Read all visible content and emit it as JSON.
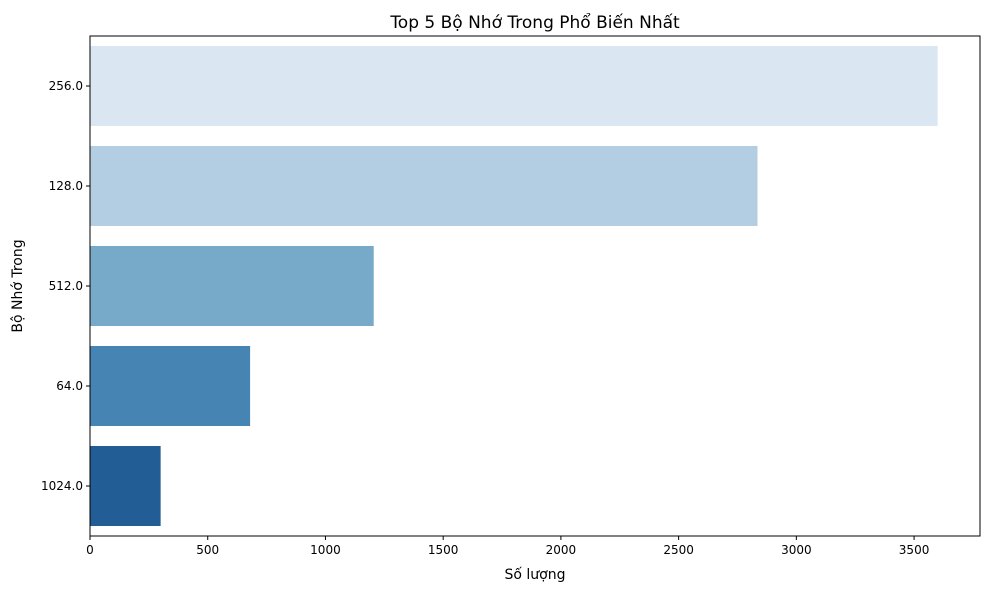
{
  "chart_data": {
    "type": "bar",
    "orientation": "horizontal",
    "title": "Top 5 Bộ Nhớ Trong Phổ Biến Nhất",
    "xlabel": "Số lượng",
    "ylabel": "Bộ Nhớ Trong",
    "categories": [
      "256.0",
      "128.0",
      "512.0",
      "64.0",
      "1024.0"
    ],
    "values": [
      3600,
      2835,
      1205,
      680,
      300
    ],
    "colors": [
      "#dae6f2",
      "#b3cee2",
      "#77aac9",
      "#4684b4",
      "#225d95"
    ],
    "xlim": [
      0,
      3780
    ],
    "xticks": [
      0,
      500,
      1000,
      1500,
      2000,
      2500,
      3000,
      3500
    ],
    "grid": false,
    "legend": "none"
  }
}
